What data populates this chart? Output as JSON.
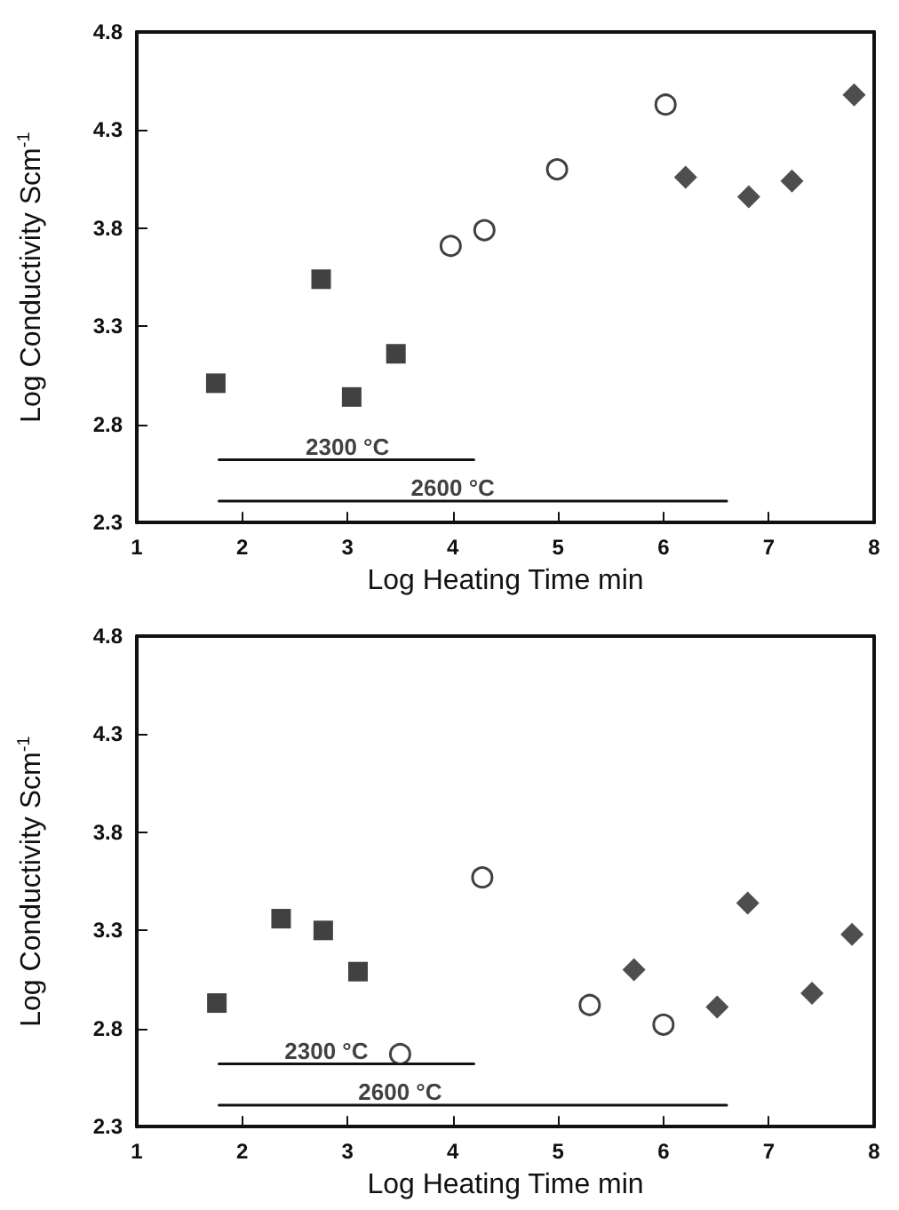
{
  "chart_data": [
    {
      "type": "scatter",
      "xlabel": "Log Heating Time min",
      "ylabel": "Log Conductivity Scm$^{-1}$",
      "xlim": [
        1,
        8
      ],
      "ylim": [
        2.3,
        4.8
      ],
      "xticks": [
        1,
        2,
        3,
        4,
        5,
        6,
        7,
        8
      ],
      "yticks": [
        2.3,
        2.8,
        3.3,
        3.8,
        4.3,
        4.8
      ],
      "grid": false,
      "annotations": [
        {
          "text": "2300 °C",
          "x": 3,
          "y": 2.62
        },
        {
          "text": "2600 °C",
          "x": 4,
          "y": 2.41
        }
      ],
      "series": [
        {
          "marker": "square",
          "color": "#111111",
          "x": [
            1.75,
            2.75,
            3.04,
            3.46
          ],
          "values": [
            3.01,
            3.54,
            2.94,
            3.16
          ]
        },
        {
          "marker": "circle",
          "color": "#111111",
          "x": [
            3.98,
            4.3,
            4.99,
            6.02
          ],
          "values": [
            3.71,
            3.79,
            4.1,
            4.43
          ]
        },
        {
          "marker": "diamond",
          "color": "#222222",
          "x": [
            6.21,
            6.81,
            7.22,
            7.81
          ],
          "values": [
            4.06,
            3.96,
            4.04,
            4.48
          ]
        },
        {
          "type": "line",
          "marker": "none",
          "color": "#111111",
          "x": [
            1.78,
            4.2
          ],
          "values": [
            2.62,
            2.62
          ]
        },
        {
          "type": "line",
          "marker": "none",
          "color": "#111111",
          "x": [
            1.78,
            6.6
          ],
          "values": [
            2.41,
            2.41
          ]
        }
      ]
    },
    {
      "type": "scatter",
      "xlabel": "Log Heating Time min",
      "ylabel": "Log Conductivity Scm$^{-1}$",
      "xlim": [
        1,
        8
      ],
      "ylim": [
        2.3,
        4.8
      ],
      "xticks": [
        1,
        2,
        3,
        4,
        5,
        6,
        7,
        8
      ],
      "yticks": [
        2.3,
        2.8,
        3.3,
        3.8,
        4.3,
        4.8
      ],
      "grid": false,
      "annotations": [
        {
          "text": "2300 °C",
          "x": 2.8,
          "y": 2.62
        },
        {
          "text": "2600 °C",
          "x": 3.5,
          "y": 2.41
        }
      ],
      "series": [
        {
          "marker": "square",
          "color": "#111111",
          "x": [
            1.76,
            2.37,
            2.77,
            3.1
          ],
          "values": [
            2.93,
            3.36,
            3.3,
            3.09
          ]
        },
        {
          "marker": "circle",
          "color": "#111111",
          "x": [
            3.5,
            4.28,
            5.3,
            6.0
          ],
          "values": [
            2.67,
            3.57,
            2.92,
            2.82
          ]
        },
        {
          "marker": "diamond",
          "color": "#222222",
          "x": [
            5.72,
            6.51,
            6.8,
            7.41,
            7.79
          ],
          "values": [
            3.1,
            2.91,
            3.44,
            2.98,
            3.28
          ]
        },
        {
          "type": "line",
          "marker": "none",
          "color": "#111111",
          "x": [
            1.78,
            4.2
          ],
          "values": [
            2.62,
            2.62
          ]
        },
        {
          "type": "line",
          "marker": "none",
          "color": "#111111",
          "x": [
            1.78,
            6.6
          ],
          "values": [
            2.41,
            2.41
          ]
        }
      ]
    }
  ]
}
